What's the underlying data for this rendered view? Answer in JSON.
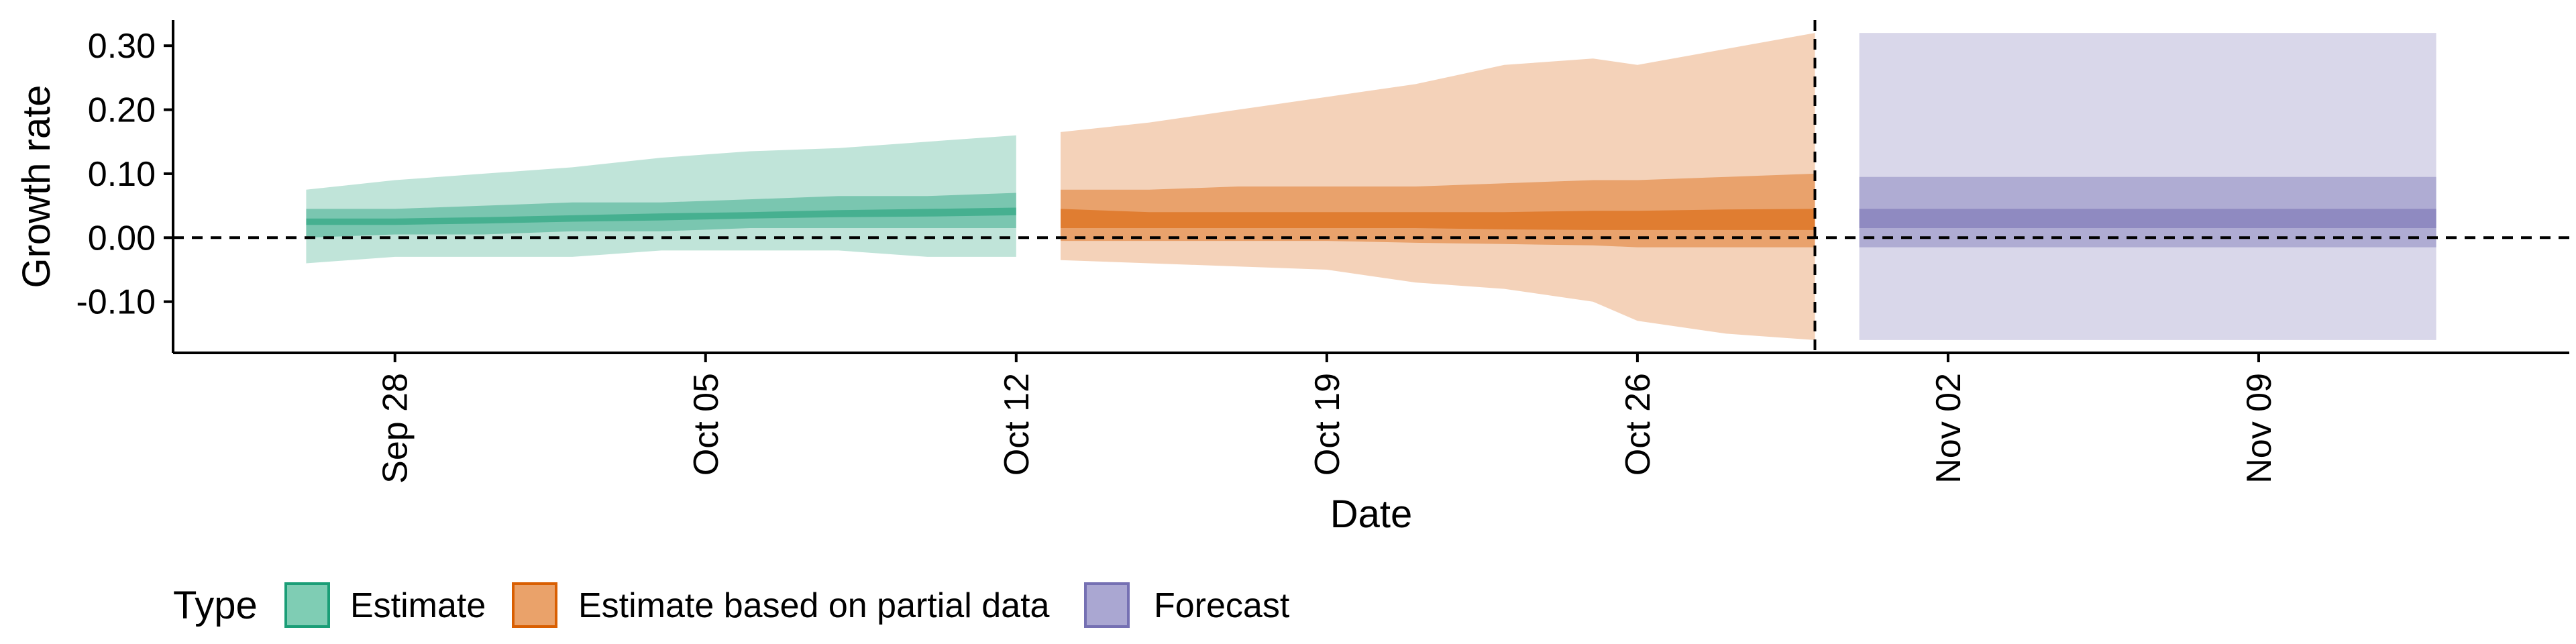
{
  "chart_data": {
    "type": "area",
    "xlabel": "Date",
    "ylabel": "Growth rate",
    "x_range": [
      "2020-09-23",
      "2020-11-16"
    ],
    "ylim": [
      -0.18,
      0.34
    ],
    "x_ticks": [
      {
        "date": "2020-09-28",
        "label": "Sep 28"
      },
      {
        "date": "2020-10-05",
        "label": "Oct 05"
      },
      {
        "date": "2020-10-12",
        "label": "Oct 12"
      },
      {
        "date": "2020-10-19",
        "label": "Oct 19"
      },
      {
        "date": "2020-10-26",
        "label": "Oct 26"
      },
      {
        "date": "2020-11-02",
        "label": "Nov 02"
      },
      {
        "date": "2020-11-09",
        "label": "Nov 09"
      }
    ],
    "y_ticks": [
      {
        "value": 0.3,
        "label": "0.30"
      },
      {
        "value": 0.2,
        "label": "0.20"
      },
      {
        "value": 0.1,
        "label": "0.10"
      },
      {
        "value": 0.0,
        "label": "0.00"
      },
      {
        "value": -0.1,
        "label": "-0.10"
      }
    ],
    "reference_lines": {
      "horizontal_y": 0.0,
      "vertical_date": "2020-10-30"
    },
    "grid": false,
    "legend": {
      "title": "Type",
      "position": "bottom-left",
      "entries": [
        {
          "label": "Estimate",
          "fill": "#7fcdb4",
          "stroke": "#1b9e77"
        },
        {
          "label": "Estimate based on partial data",
          "fill": "#eaa26a",
          "stroke": "#d95f02"
        },
        {
          "label": "Forecast",
          "fill": "#aaa7d2",
          "stroke": "#7570b3"
        }
      ]
    },
    "series": [
      {
        "name": "Estimate",
        "color": "#1b9e77",
        "x": [
          "2020-09-26",
          "2020-09-28",
          "2020-09-30",
          "2020-10-02",
          "2020-10-04",
          "2020-10-06",
          "2020-10-08",
          "2020-10-10",
          "2020-10-12"
        ],
        "lower90": [
          -0.04,
          -0.03,
          -0.03,
          -0.03,
          -0.02,
          -0.02,
          -0.02,
          -0.03,
          -0.03
        ],
        "upper90": [
          0.075,
          0.09,
          0.1,
          0.11,
          0.125,
          0.135,
          0.14,
          0.15,
          0.16
        ],
        "lower50": [
          0.0,
          0.005,
          0.005,
          0.01,
          0.01,
          0.015,
          0.015,
          0.015,
          0.015
        ],
        "upper50": [
          0.045,
          0.045,
          0.05,
          0.055,
          0.055,
          0.06,
          0.065,
          0.065,
          0.07
        ],
        "lower20": [
          0.02,
          0.02,
          0.022,
          0.025,
          0.027,
          0.03,
          0.032,
          0.033,
          0.035
        ],
        "upper20": [
          0.03,
          0.03,
          0.032,
          0.035,
          0.038,
          0.04,
          0.043,
          0.045,
          0.047
        ]
      },
      {
        "name": "Estimate based on partial data",
        "color": "#d95f02",
        "x": [
          "2020-10-13",
          "2020-10-15",
          "2020-10-17",
          "2020-10-19",
          "2020-10-21",
          "2020-10-23",
          "2020-10-25",
          "2020-10-26",
          "2020-10-28",
          "2020-10-30"
        ],
        "lower90": [
          -0.035,
          -0.04,
          -0.045,
          -0.05,
          -0.07,
          -0.08,
          -0.1,
          -0.13,
          -0.15,
          -0.16
        ],
        "upper90": [
          0.165,
          0.18,
          0.2,
          0.22,
          0.24,
          0.27,
          0.28,
          0.27,
          0.295,
          0.32
        ],
        "lower50": [
          -0.005,
          -0.005,
          -0.005,
          -0.005,
          -0.008,
          -0.01,
          -0.012,
          -0.015,
          -0.015,
          -0.015
        ],
        "upper50": [
          0.075,
          0.075,
          0.08,
          0.08,
          0.08,
          0.085,
          0.09,
          0.09,
          0.095,
          0.1
        ],
        "lower20": [
          0.015,
          0.015,
          0.015,
          0.015,
          0.015,
          0.013,
          0.012,
          0.012,
          0.012,
          0.012
        ],
        "upper20": [
          0.045,
          0.04,
          0.04,
          0.04,
          0.04,
          0.04,
          0.042,
          0.042,
          0.044,
          0.045
        ]
      },
      {
        "name": "Forecast",
        "color": "#7570b3",
        "x": [
          "2020-10-31",
          "2020-11-13"
        ],
        "lower90": [
          -0.16,
          -0.16
        ],
        "upper90": [
          0.32,
          0.32
        ],
        "lower50": [
          -0.015,
          -0.015
        ],
        "upper50": [
          0.095,
          0.095
        ],
        "lower20": [
          0.015,
          0.015
        ],
        "upper20": [
          0.045,
          0.045
        ]
      }
    ]
  }
}
